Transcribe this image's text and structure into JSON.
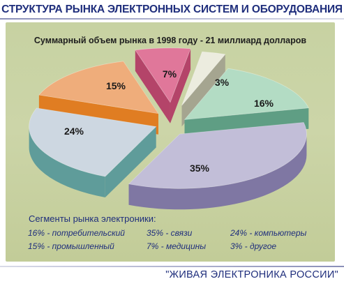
{
  "header": {
    "title": "СТРУКТУРА РЫНКА ЭЛЕКТРОННЫХ СИСТЕМ И ОБОРУДОВАНИЯ"
  },
  "footer": {
    "text": "\"ЖИВАЯ ЭЛЕКТРОНИКА РОССИИ\""
  },
  "legend": {
    "title": "Сегменты рынка электроники:",
    "items": [
      "16% - потребительский",
      "35% - связи",
      "24% - компьютеры",
      "15% - промышленный",
      "7% - медицины",
      "3% - другое"
    ]
  },
  "colors": {
    "panel": "#c7d2a2",
    "text_blue": "#1f2e7c"
  },
  "chart_data": {
    "type": "pie",
    "subtitle": "Суммарный объем рынка в 1998 году - 21 миллиард долларов",
    "style": "3d-exploded",
    "slices": [
      {
        "label": "16%",
        "value": 16,
        "legend": "потребительский",
        "color": "#b3dcc4",
        "side": "#5f9e84"
      },
      {
        "label": "35%",
        "value": 35,
        "legend": "связи",
        "color": "#c2bed8",
        "side": "#7f77a3"
      },
      {
        "label": "24%",
        "value": 24,
        "legend": "компьютеры",
        "color": "#cdd7e1",
        "side": "#5f9c9a"
      },
      {
        "label": "15%",
        "value": 15,
        "legend": "промышленный",
        "color": "#efad7b",
        "side": "#e07d22"
      },
      {
        "label": "7%",
        "value": 7,
        "legend": "медицины",
        "color": "#e0779a",
        "side": "#b44469"
      },
      {
        "label": "3%",
        "value": 3,
        "legend": "другое",
        "color": "#ececdf",
        "side": "#a5a590"
      }
    ]
  }
}
